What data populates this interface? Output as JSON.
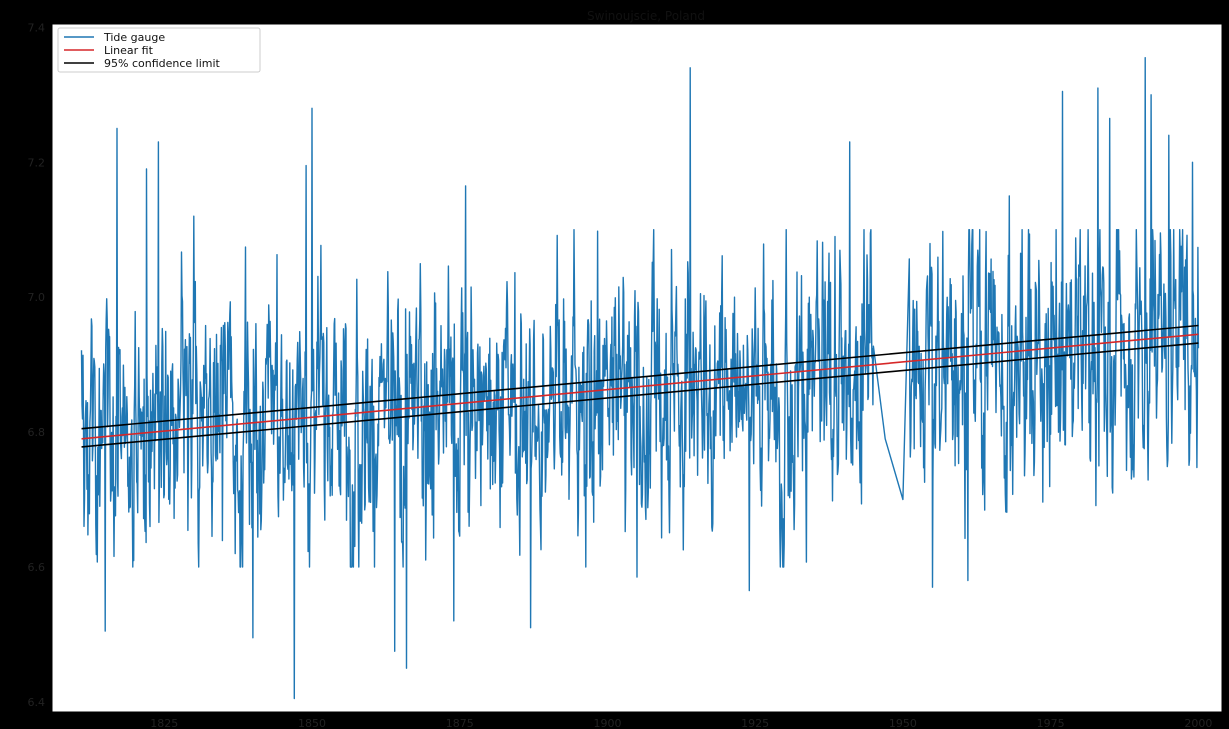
{
  "chart_data": {
    "type": "line",
    "title": "Swinoujscie, Poland",
    "xlabel": "",
    "ylabel": "",
    "xlim": [
      1806,
      2004
    ],
    "ylim": [
      6.385,
      7.405
    ],
    "x_ticks": [
      1825,
      1850,
      1875,
      1900,
      1925,
      1950,
      1975,
      2000
    ],
    "y_ticks": [
      6.4,
      6.6,
      6.8,
      7.0,
      7.2,
      7.4
    ],
    "x_tick_labels": [
      "1825",
      "1850",
      "1875",
      "1900",
      "1925",
      "1950",
      "1975",
      "2000"
    ],
    "y_tick_labels": [
      "6.4",
      "6.6",
      "6.8",
      "7.0",
      "7.2",
      "7.4"
    ],
    "grid": false,
    "legend_position": "top-left",
    "series": [
      {
        "name": "Tide gauge",
        "color": "#1f77b4",
        "kind": "monthly-series",
        "x_range": [
          1811,
          2000
        ],
        "gap": [
          1945,
          1951
        ],
        "mean_trend": [
          [
            1811,
            6.79
          ],
          [
            2000,
            6.945
          ]
        ],
        "typical_range": [
          6.65,
          7.05
        ],
        "extremes": [
          [
            1815,
            6.505
          ],
          [
            1817,
            7.25
          ],
          [
            1822,
            7.19
          ],
          [
            1824,
            7.23
          ],
          [
            1830,
            7.12
          ],
          [
            1840,
            6.495
          ],
          [
            1847,
            6.405
          ],
          [
            1849,
            7.195
          ],
          [
            1850,
            7.28
          ],
          [
            1864,
            6.475
          ],
          [
            1866,
            6.45
          ],
          [
            1874,
            6.52
          ],
          [
            1876,
            7.165
          ],
          [
            1887,
            6.51
          ],
          [
            1905,
            6.585
          ],
          [
            1914,
            7.34
          ],
          [
            1924,
            6.565
          ],
          [
            1941,
            7.23
          ],
          [
            1947,
            6.79
          ],
          [
            1950,
            6.7
          ],
          [
            1955,
            6.57
          ],
          [
            1961,
            6.58
          ],
          [
            1968,
            7.15
          ],
          [
            1977,
            7.305
          ],
          [
            1983,
            7.31
          ],
          [
            1985,
            7.265
          ],
          [
            1991,
            7.355
          ],
          [
            1992,
            7.3
          ],
          [
            1995,
            7.24
          ],
          [
            1999,
            7.2
          ]
        ]
      },
      {
        "name": "Linear fit",
        "color": "#d62728",
        "x": [
          1811,
          2000
        ],
        "y": [
          6.79,
          6.945
        ]
      },
      {
        "name": "95% confidence limit",
        "color": "#000000",
        "x": [
          1811,
          2000
        ],
        "y_upper": [
          6.805,
          6.958
        ],
        "y_lower": [
          6.778,
          6.932
        ]
      }
    ]
  }
}
